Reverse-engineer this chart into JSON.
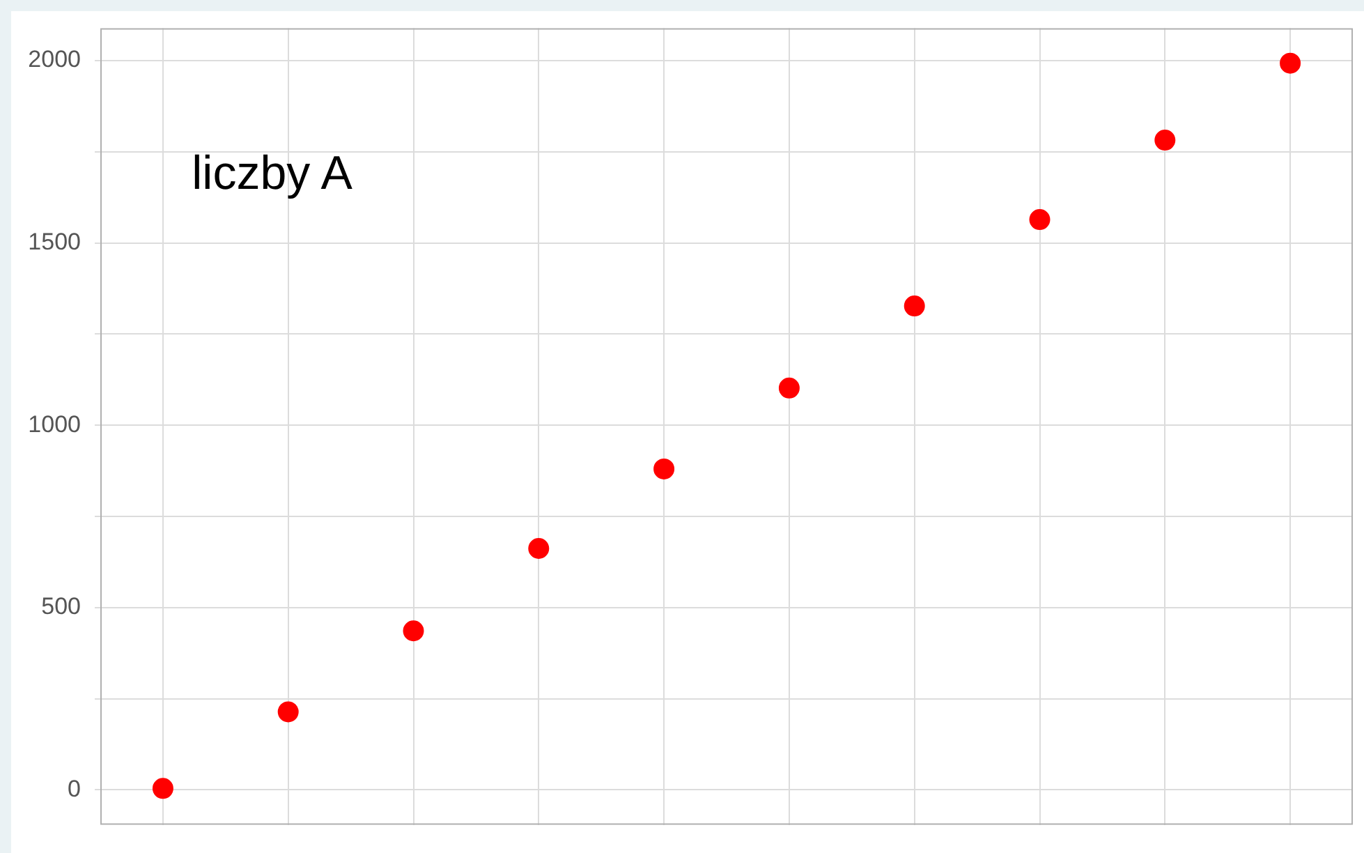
{
  "chart_data": {
    "type": "scatter",
    "annotations": [
      "liczby A"
    ],
    "categories": [
      null,
      null,
      null,
      null,
      null,
      null,
      null,
      null,
      null,
      null
    ],
    "series": [
      {
        "color": "#ff0000",
        "values": [
          4,
          214,
          436,
          662,
          880,
          1102,
          1327,
          1564,
          1782,
          1993
        ]
      }
    ],
    "marker": "circle",
    "grid": true,
    "legend": false,
    "tick_labels": "y",
    "ylim": [
      -96,
      2089
    ],
    "yticks": [
      0,
      {
        "value": 250,
        "label": null
      },
      500,
      {
        "value": 750,
        "label": null
      },
      1000,
      {
        "value": 1250,
        "label": null
      },
      1500,
      {
        "value": 1750,
        "label": null
      },
      2000
    ]
  }
}
